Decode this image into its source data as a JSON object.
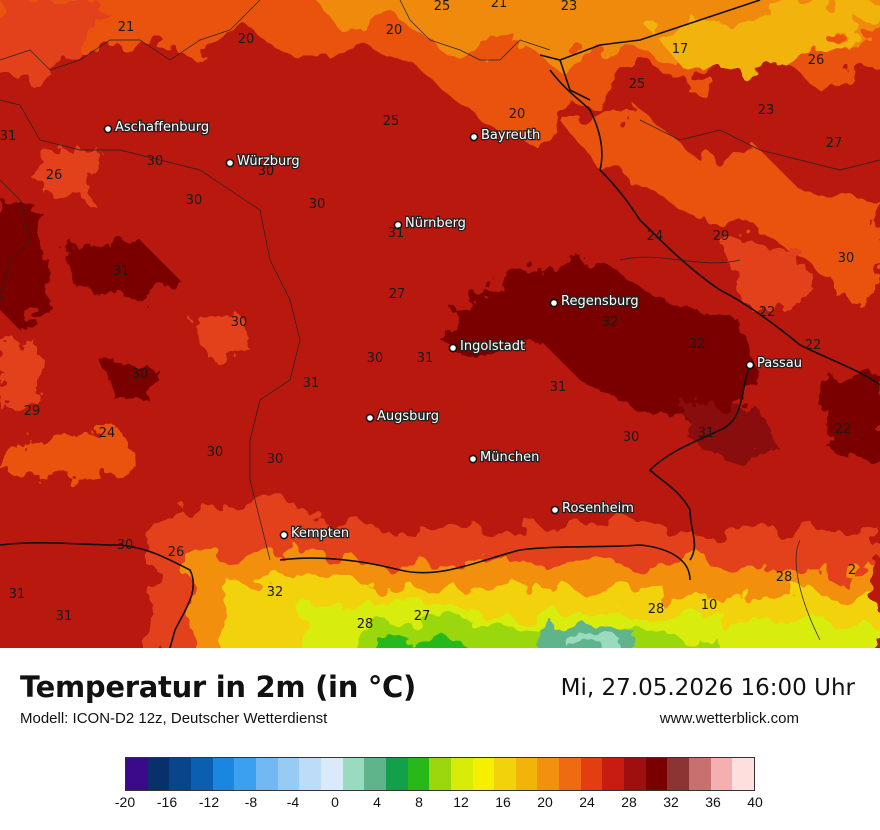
{
  "map": {
    "cities": [
      {
        "name": "Aschaffenburg"
      },
      {
        "name": "Würzburg"
      },
      {
        "name": "Bayreuth"
      },
      {
        "name": "Nürnberg"
      },
      {
        "name": "Regensburg"
      },
      {
        "name": "Ingolstadt"
      },
      {
        "name": "Passau"
      },
      {
        "name": "Augsburg"
      },
      {
        "name": "München"
      },
      {
        "name": "Rosenheim"
      },
      {
        "name": "Kempten"
      }
    ],
    "values": [
      "25",
      "21",
      "23",
      "21",
      "20",
      "20",
      "17",
      "26",
      "25",
      "31",
      "20",
      "25",
      "30",
      "30",
      "26",
      "23",
      "27",
      "30",
      "30",
      "31",
      "24",
      "29",
      "30",
      "31",
      "27",
      "30",
      "32",
      "22",
      "22",
      "32",
      "30",
      "31",
      "30",
      "31",
      "31",
      "29",
      "24",
      "30",
      "30",
      "30",
      "31",
      "22",
      "30",
      "26",
      "32",
      "31",
      "31",
      "28",
      "27",
      "28",
      "10",
      "28",
      "2"
    ]
  },
  "footer": {
    "title": "Temperatur in 2m (in °C)",
    "model": "Modell: ICON-D2 12z, Deutscher Wetterdienst",
    "datetime": "Mi, 27.05.2026 16:00 Uhr",
    "website": "www.wetterblick.com"
  },
  "legend": {
    "colors": [
      "#3a0a8a",
      "#08306b",
      "#08458a",
      "#0b5fb0",
      "#1a86e0",
      "#3ba0f0",
      "#72b8f2",
      "#98cbf4",
      "#bcdcf7",
      "#d9ebfb",
      "#98dbbf",
      "#5fb48c",
      "#12a04a",
      "#27b81a",
      "#9ad80d",
      "#d8ec08",
      "#f4f000",
      "#f2d20c",
      "#f2b30a",
      "#f29010",
      "#f06a12",
      "#e33d12",
      "#c81c12",
      "#a00f10",
      "#7a0000",
      "#8c3434",
      "#c87070",
      "#f4b0b0",
      "#ffdede"
    ],
    "ticks": [
      "-20",
      "-16",
      "-12",
      "-8",
      "-4",
      "0",
      "4",
      "8",
      "12",
      "16",
      "20",
      "24",
      "28",
      "32",
      "36",
      "40"
    ]
  }
}
